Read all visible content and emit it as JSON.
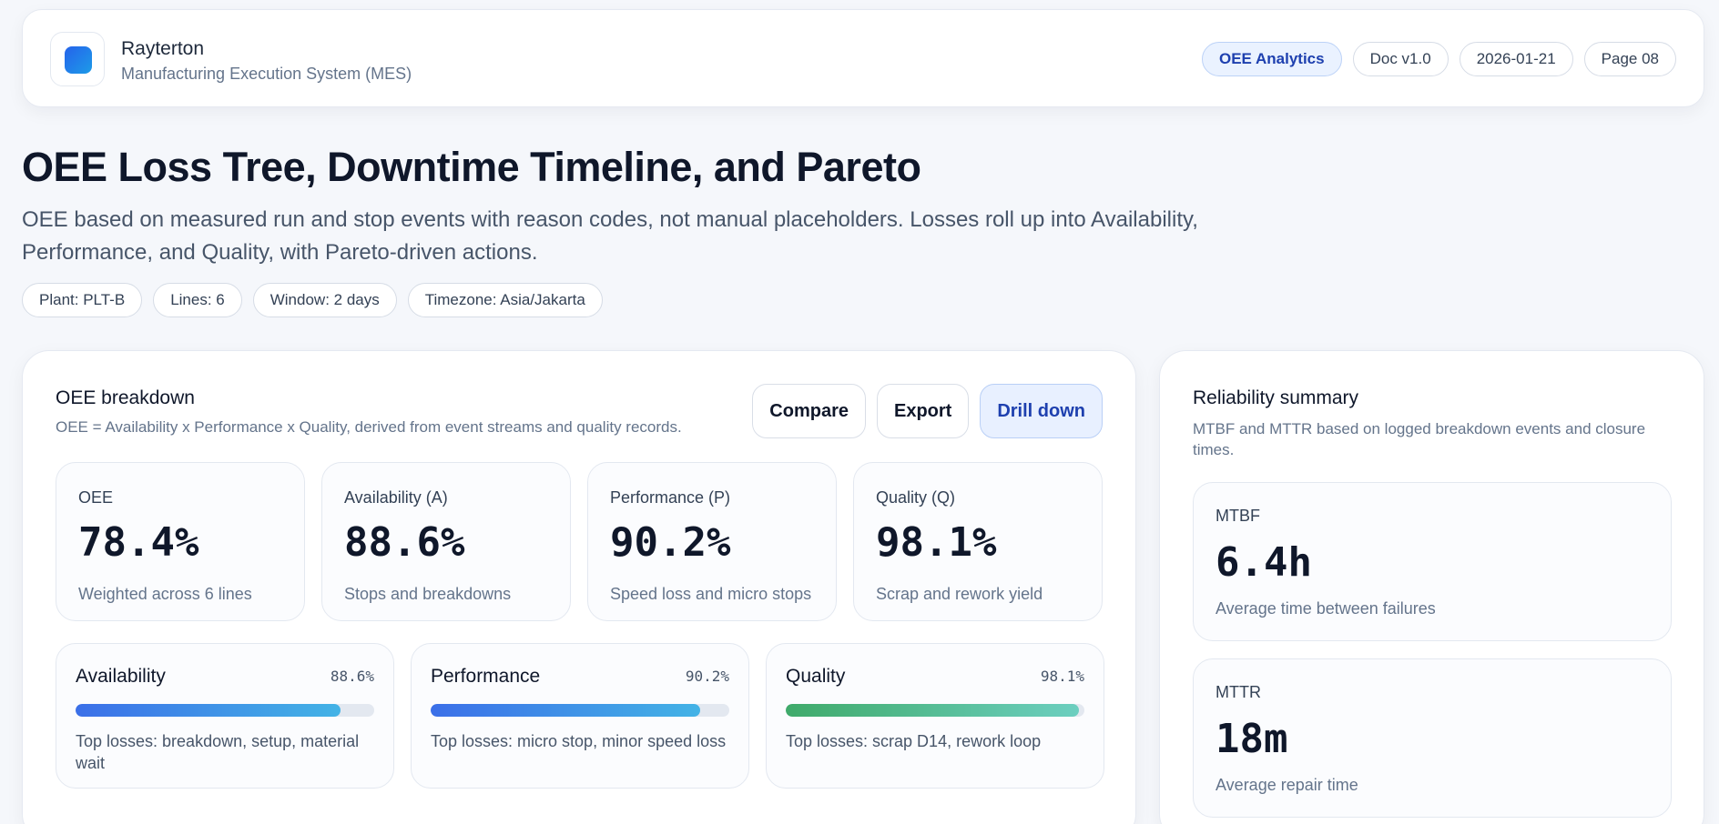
{
  "header": {
    "brand_name": "Rayterton",
    "brand_sub": "Manufacturing Execution System (MES)",
    "chips": [
      "OEE Analytics",
      "Doc v1.0",
      "2026-01-21",
      "Page 08"
    ]
  },
  "page": {
    "title": "OEE Loss Tree, Downtime Timeline, and Pareto",
    "description": "OEE based on measured run and stop events with reason codes, not manual placeholders. Losses roll up into Availability, Performance, and Quality, with Pareto-driven actions.",
    "meta": [
      "Plant: PLT-B",
      "Lines: 6",
      "Window: 2 days",
      "Timezone: Asia/Jakarta"
    ]
  },
  "oee": {
    "title": "OEE breakdown",
    "subtitle": "OEE = Availability x Performance x Quality, derived from event streams and quality records.",
    "actions": {
      "compare": "Compare",
      "export": "Export",
      "drill": "Drill down"
    },
    "kpis": [
      {
        "label": "OEE",
        "value": "78.4%",
        "note": "Weighted across 6 lines"
      },
      {
        "label": "Availability (A)",
        "value": "88.6%",
        "note": "Stops and breakdowns"
      },
      {
        "label": "Performance (P)",
        "value": "90.2%",
        "note": "Speed loss and micro stops"
      },
      {
        "label": "Quality (Q)",
        "value": "98.1%",
        "note": "Scrap and rework yield"
      }
    ],
    "bars": [
      {
        "name": "Availability",
        "pct": "88.6%",
        "fill": 0.886,
        "note": "Top losses: breakdown, setup, material wait"
      },
      {
        "name": "Performance",
        "pct": "90.2%",
        "fill": 0.902,
        "note": "Top losses: micro stop, minor speed loss"
      },
      {
        "name": "Quality",
        "pct": "98.1%",
        "fill": 0.981,
        "note": "Top losses: scrap D14, rework loop"
      }
    ]
  },
  "reliability": {
    "title": "Reliability summary",
    "subtitle": "MTBF and MTTR based on logged breakdown events and closure times.",
    "mtbf": {
      "label": "MTBF",
      "value": "6.4h",
      "note": "Average time between failures"
    },
    "mttr": {
      "label": "MTTR",
      "value": "18m",
      "note": "Average repair time"
    }
  },
  "colors": {
    "accent": "#1e40af",
    "bar_blue": "#3b6fe8",
    "bar_green": "#3faa6a"
  }
}
